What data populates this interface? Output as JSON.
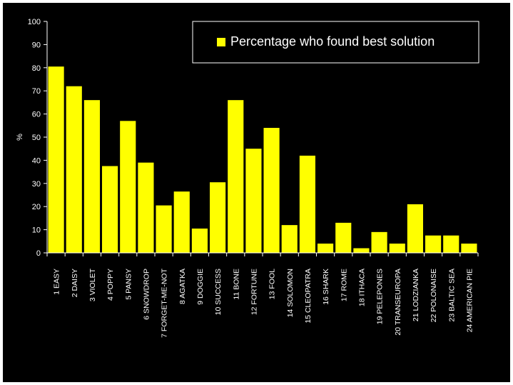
{
  "chart_data": {
    "type": "bar",
    "title": "",
    "xlabel": "",
    "ylabel": "%",
    "ylim": [
      0,
      100
    ],
    "yticks": [
      0,
      10,
      20,
      30,
      40,
      50,
      60,
      70,
      80,
      90,
      100
    ],
    "grid": false,
    "legend_position": "top-right",
    "series": [
      {
        "name": "Percentage who found best solution",
        "color": "#ffff00",
        "values": [
          80.5,
          72,
          66,
          37.5,
          57,
          39,
          20.5,
          26.5,
          10.5,
          30.5,
          66,
          45,
          54,
          12,
          42,
          4,
          13,
          2,
          9,
          4,
          21,
          7.5,
          7.5,
          4
        ]
      }
    ],
    "categories": [
      "1 EASY",
      "2 DAISY",
      "3 VIOLET",
      "4 POPPY",
      "5 PANSY",
      "6 SNOWDROP",
      "7 FORGET-ME-NOT",
      "8 AGATKA",
      "9 DOGGIE",
      "10 SUCCESS",
      "11 BONE",
      "12 FORTUNE",
      "13 FOOL",
      "14 SOLOMON",
      "15 CLEOPATRA",
      "16 SHARK",
      "17 ROME",
      "18 ITHACA",
      "19 PELEPONES",
      "20 TRANSEUROPA",
      "21 LODZIANKA",
      "22 POLONAISE",
      "23 BALTIC SEA",
      "24 AMERICAN PIE"
    ]
  }
}
